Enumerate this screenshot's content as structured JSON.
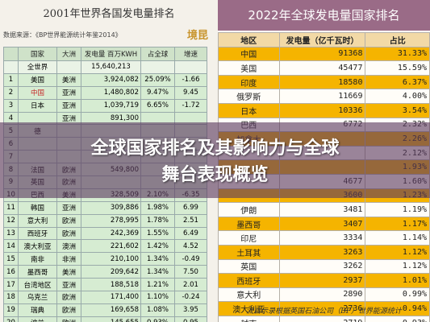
{
  "left": {
    "title": "2001年世界各国发电量排名",
    "source": "数据来源：《BP世界能源统计年鉴2014》",
    "logo_text": "境昆",
    "headers": [
      "",
      "国家",
      "大洲",
      "发电量\n百万KWH",
      "占全球",
      "增速"
    ],
    "rows": [
      [
        "",
        "全世界",
        "",
        "15,640,213",
        "",
        ""
      ],
      [
        "1",
        "美国",
        "美洲",
        "3,924,082",
        "25.09%",
        "-1.66"
      ],
      [
        "2",
        "中国",
        "亚洲",
        "1,480,802",
        "9.47%",
        "9.45"
      ],
      [
        "3",
        "日本",
        "亚洲",
        "1,039,719",
        "6.65%",
        "-1.72"
      ],
      [
        "4",
        "",
        "亚洲",
        "891,300",
        "",
        ""
      ],
      [
        "5",
        "德",
        "",
        "",
        "",
        ""
      ],
      [
        "6",
        "",
        "",
        "",
        "",
        ""
      ],
      [
        "7",
        "",
        "",
        "",
        "",
        ""
      ],
      [
        "8",
        "法国",
        "欧洲",
        "549,800",
        "",
        ""
      ],
      [
        "9",
        "英国",
        "欧洲",
        "",
        "",
        ""
      ],
      [
        "10",
        "巴西",
        "美洲",
        "328,509",
        "2.10%",
        "-6.35"
      ],
      [
        "11",
        "韩国",
        "亚洲",
        "309,886",
        "1.98%",
        "6.99"
      ],
      [
        "12",
        "意大利",
        "欧洲",
        "278,995",
        "1.78%",
        "2.51"
      ],
      [
        "13",
        "西班牙",
        "欧洲",
        "242,369",
        "1.55%",
        "6.49"
      ],
      [
        "14",
        "澳大利亚",
        "澳洲",
        "221,602",
        "1.42%",
        "4.52"
      ],
      [
        "15",
        "南非",
        "非洲",
        "210,100",
        "1.34%",
        "-0.49"
      ],
      [
        "16",
        "墨西哥",
        "美洲",
        "209,642",
        "1.34%",
        "7.50"
      ],
      [
        "17",
        "台湾地区",
        "亚洲",
        "188,518",
        "1.21%",
        "2.01"
      ],
      [
        "18",
        "乌克兰",
        "欧洲",
        "171,400",
        "1.10%",
        "-0.24"
      ],
      [
        "19",
        "瑞典",
        "欧洲",
        "169,658",
        "1.08%",
        "3.95"
      ],
      [
        "20",
        "波兰",
        "欧洲",
        "145,655",
        "0.93%",
        "0.95"
      ]
    ]
  },
  "right": {
    "title": "2022年全球发电量国家排名",
    "headers": [
      "地区",
      "发电量（亿千瓦时）",
      "占比"
    ],
    "rows": [
      [
        "中国",
        "91368",
        "31.33%"
      ],
      [
        "美国",
        "45477",
        "15.59%"
      ],
      [
        "印度",
        "18580",
        "6.37%"
      ],
      [
        "俄罗斯",
        "11669",
        "4.00%"
      ],
      [
        "日本",
        "10336",
        "3.54%"
      ],
      [
        "巴西",
        "6772",
        "2.32%"
      ],
      [
        "加拿大",
        "",
        "2.26%"
      ],
      [
        "",
        "",
        "2.12%"
      ],
      [
        "",
        "",
        "1.93%"
      ],
      [
        "",
        "4677",
        "1.60%"
      ],
      [
        "",
        "3600",
        "1.23%"
      ],
      [
        "伊朗",
        "3481",
        "1.19%"
      ],
      [
        "墨西哥",
        "3407",
        "1.17%"
      ],
      [
        "印尼",
        "3334",
        "1.14%"
      ],
      [
        "土耳其",
        "3263",
        "1.12%"
      ],
      [
        "英国",
        "3262",
        "1.12%"
      ],
      [
        "西班牙",
        "2937",
        "1.01%"
      ],
      [
        "意大利",
        "2890",
        "0.99%"
      ],
      [
        "澳大利亚",
        "2736",
        "0.94%"
      ],
      [
        "越南",
        "2719",
        "0.93%"
      ]
    ],
    "footer": "流启示录根据英国石油公司（BP）世界能源统计"
  },
  "banner": {
    "line1": "全球国家排名及其影响力与全球",
    "line2": "舞台表现概览"
  },
  "colors": {
    "right_title_bg": "#9a6b87",
    "orange_row": "#f5b400",
    "banner_overlay": "#5c3a5f"
  }
}
